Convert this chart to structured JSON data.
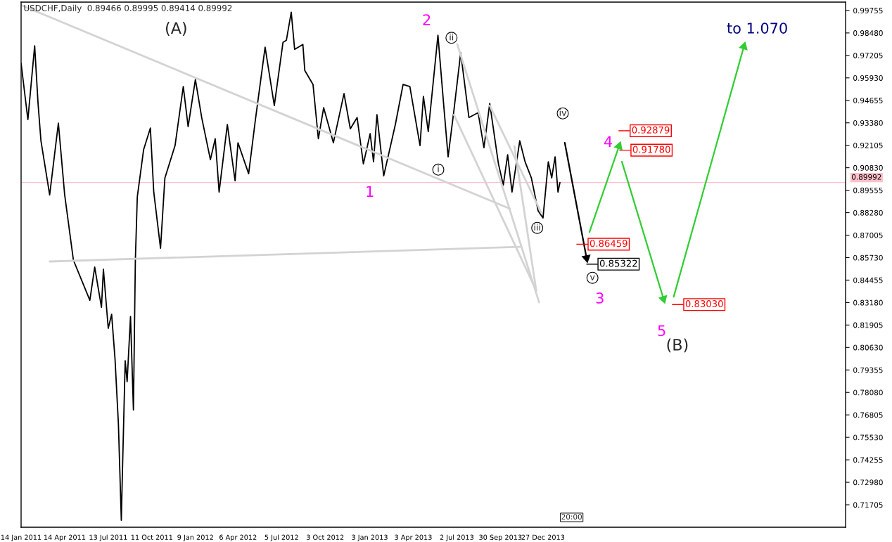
{
  "chart_data": {
    "type": "line",
    "title": "USDCHF,Daily  0.89466 0.89995 0.89414 0.89992",
    "series": [
      {
        "color": "#000000",
        "x": [
          "2011-01-14",
          "2011-01-28",
          "2011-02-11",
          "2011-02-18",
          "2011-02-24",
          "2011-03-14",
          "2011-04-01",
          "2011-04-14",
          "2011-05-02",
          "2011-06-05",
          "2011-06-15",
          "2011-06-29",
          "2011-07-03",
          "2011-07-13",
          "2011-07-20",
          "2011-07-27",
          "2011-08-03",
          "2011-08-09",
          "2011-08-11",
          "2011-08-17",
          "2011-08-21",
          "2011-08-28",
          "2011-09-03",
          "2011-09-07",
          "2011-09-11",
          "2011-09-24",
          "2011-10-08",
          "2011-10-15",
          "2011-10-29",
          "2011-11-07",
          "2011-11-28",
          "2011-12-15",
          "2011-12-25",
          "2012-01-09",
          "2012-01-22",
          "2012-02-09",
          "2012-02-19",
          "2012-02-27",
          "2012-03-15",
          "2012-03-31",
          "2012-04-06",
          "2012-04-28",
          "2012-05-12",
          "2012-06-01",
          "2012-06-20",
          "2012-07-08",
          "2012-07-15",
          "2012-07-25",
          "2012-08-01",
          "2012-08-18",
          "2012-08-22",
          "2012-09-08",
          "2012-09-19",
          "2012-09-30",
          "2012-10-20",
          "2012-11-11",
          "2012-11-24",
          "2012-12-08",
          "2012-12-21",
          "2013-01-04",
          "2013-01-11",
          "2013-01-18",
          "2013-02-01",
          "2013-02-25",
          "2013-03-13",
          "2013-03-27",
          "2013-04-17",
          "2013-04-24",
          "2013-05-04",
          "2013-05-24",
          "2013-06-05",
          "2013-06-14",
          "2013-06-26",
          "2013-07-10",
          "2013-07-27",
          "2013-08-15",
          "2013-08-27",
          "2013-09-08",
          "2013-09-26",
          "2013-10-06",
          "2013-10-15",
          "2013-10-24",
          "2013-11-09",
          "2013-11-20",
          "2013-12-03",
          "2013-12-17",
          "2013-12-27",
          "2014-01-07",
          "2014-01-14",
          "2014-01-21",
          "2014-01-27",
          "2014-01-31"
        ],
        "values": [
          0.9675,
          0.9356,
          0.9775,
          0.9448,
          0.9236,
          0.8929,
          0.9336,
          0.8929,
          0.8559,
          0.8331,
          0.8519,
          0.8291,
          0.8507,
          0.8172,
          0.8251,
          0.7998,
          0.7629,
          0.7083,
          0.7322,
          0.7988,
          0.7869,
          0.8239,
          0.7709,
          0.8559,
          0.8917,
          0.9185,
          0.9308,
          0.8945,
          0.8626,
          0.9025,
          0.9209,
          0.9544,
          0.9316,
          0.9584,
          0.9368,
          0.9129,
          0.9248,
          0.8945,
          0.9328,
          0.9009,
          0.9225,
          0.9049,
          0.9356,
          0.9767,
          0.9436,
          0.9795,
          0.9807,
          0.9966,
          0.9755,
          0.9783,
          0.9635,
          0.9555,
          0.9248,
          0.9424,
          0.9225,
          0.9504,
          0.9304,
          0.9368,
          0.9105,
          0.9276,
          0.9117,
          0.9384,
          0.9037,
          0.9328,
          0.9556,
          0.9544,
          0.9209,
          0.9488,
          0.9288,
          0.9835,
          0.9436,
          0.9145,
          0.9408,
          0.9735,
          0.9368,
          0.9396,
          0.9197,
          0.9448,
          0.9105,
          0.8985,
          0.9157,
          0.8945,
          0.9236,
          0.9117,
          0.9025,
          0.8838,
          0.8798,
          0.9117,
          0.9025,
          0.9145,
          0.8945,
          0.89992
        ]
      },
      {
        "color": "#d3d3d3",
        "x": [
          "2011-01-14",
          "2013-10-20"
        ],
        "values": [
          1.0006,
          0.885
        ]
      },
      {
        "color": "#d3d3d3",
        "x": [
          "2011-03-14",
          "2013-11-09"
        ],
        "values": [
          0.8551,
          0.8634
        ]
      },
      {
        "color": "#d3d3d3",
        "x": [
          "2013-07-03",
          "2013-12-19"
        ],
        "values": [
          0.9783,
          0.8319
        ]
      },
      {
        "color": "#d3d3d3",
        "x": [
          "2013-06-26",
          "2013-12-13"
        ],
        "values": [
          0.9384,
          0.8387
        ]
      },
      {
        "color": "#d3d3d3",
        "x": [
          "2013-09-08",
          "2013-12-23"
        ],
        "values": [
          0.9436,
          0.883
        ]
      },
      {
        "color": "#d3d3d3",
        "x": [
          "2013-10-29",
          "2013-12-13"
        ],
        "values": [
          0.9205,
          0.8387
        ]
      },
      {
        "color": "#000000",
        "marker": "triangle",
        "line_style": "solid",
        "x": [
          "2014-02-10",
          "2014-03-27"
        ],
        "values": [
          0.9225,
          0.8571
        ]
      },
      {
        "color": "#32cd32",
        "marker": "triangle",
        "x": [
          "2014-04-02",
          "2014-06-02"
        ],
        "values": [
          0.8718,
          0.9205
        ]
      },
      {
        "color": "#32cd32",
        "marker": "triangle",
        "x": [
          "2014-06-08",
          "2014-09-02"
        ],
        "values": [
          0.9117,
          0.8339
        ]
      },
      {
        "color": "#32cd32",
        "marker": "triangle",
        "x": [
          "2014-09-23",
          "2015-02-15"
        ],
        "values": [
          0.8351,
          0.9771
        ]
      }
    ],
    "xlim": [
      "2011-01-14",
      "2015-09-13"
    ],
    "xticks": [
      {
        "value": "2011-01-14",
        "label": "14 Jan 2011"
      },
      {
        "value": "2011-04-14",
        "label": "14 Apr 2011"
      },
      {
        "value": "2011-07-13",
        "label": "13 Jul 2011"
      },
      {
        "value": "2011-10-11",
        "label": "11 Oct 2011"
      },
      {
        "value": "2012-01-09",
        "label": "9 Jan 2012"
      },
      {
        "value": "2012-04-06",
        "label": "6 Apr 2012"
      },
      {
        "value": "2012-07-05",
        "label": "5 Jul 2012"
      },
      {
        "value": "2012-10-03",
        "label": "3 Oct 2012"
      },
      {
        "value": "2013-01-03",
        "label": "3 Jan 2013"
      },
      {
        "value": "2013-04-03",
        "label": "3 Apr 2013"
      },
      {
        "value": "2013-07-02",
        "label": "2 Jul 2013"
      },
      {
        "value": "2013-09-30",
        "label": "30 Sep 2013"
      },
      {
        "value": "2013-12-27",
        "label": "27 Dec 2013"
      }
    ],
    "ylim": [
      0.7043,
      1.0023
    ],
    "yticks": [
      0.99755,
      {
        "value": 0.9848,
        "label": "0.98480"
      },
      0.97205,
      {
        "value": 0.9593,
        "label": "0.95930"
      },
      0.94655,
      {
        "value": 0.9338,
        "label": "0.93380"
      },
      0.92105,
      {
        "value": 0.9083,
        "label": "0.90830"
      },
      0.89555,
      {
        "value": 0.8828,
        "label": "0.88280"
      },
      0.87005,
      {
        "value": 0.8573,
        "label": "0.85730"
      },
      0.84455,
      {
        "value": 0.8318,
        "label": "0.83180"
      },
      0.81905,
      {
        "value": 0.8063,
        "label": "0.80630"
      },
      0.79355,
      {
        "value": 0.7808,
        "label": "0.78080"
      },
      0.76805,
      {
        "value": 0.7553,
        "label": "0.75530"
      },
      0.74255,
      {
        "value": 0.7298,
        "label": "0.72980"
      },
      0.71705
    ],
    "ref_lines": [
      {
        "axis": "y",
        "value": 0.89992,
        "label": "0.89992",
        "color": "#ffc0cb"
      }
    ],
    "grid": false,
    "annotations": [
      "(A)",
      "1",
      "2",
      "i",
      "ii",
      "iii",
      "iv",
      "v",
      "3",
      "4",
      "5",
      "(B)",
      "to 1.070",
      "0.92879",
      "0.91780",
      "0.86459",
      "0.85322",
      "0.83030",
      "20:00"
    ]
  }
}
